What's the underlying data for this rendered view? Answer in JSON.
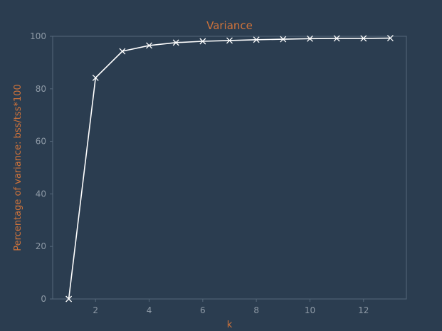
{
  "chart_data": {
    "type": "line",
    "title": "Variance",
    "xlabel": "k",
    "ylabel": "Percentage of variance: bss/tss*100",
    "x": [
      1,
      2,
      3,
      4,
      5,
      6,
      7,
      8,
      9,
      10,
      11,
      12,
      13
    ],
    "series": [
      {
        "values": [
          0,
          84.2,
          94.3,
          96.5,
          97.6,
          98.1,
          98.4,
          98.7,
          98.9,
          99.1,
          99.2,
          99.2,
          99.3
        ],
        "color": "#ffffff",
        "marker": "x"
      }
    ],
    "xlim": [
      0.4,
      13.6
    ],
    "ylim": [
      0,
      100
    ],
    "xticks": [
      "2",
      "4",
      "6",
      "8",
      "10",
      "12"
    ],
    "yticks": [
      "0",
      "20",
      "40",
      "60",
      "80",
      "100"
    ],
    "grid": false,
    "colors": {
      "background": "#2b3d50",
      "title": "#d0733a",
      "axis_label": "#d0733a",
      "tick_label": "#8e9aa6",
      "spine": "#55687a"
    }
  }
}
